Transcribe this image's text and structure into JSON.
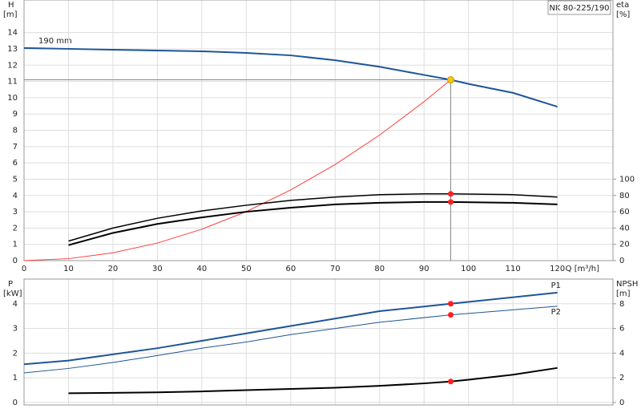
{
  "chart_data": [
    {
      "type": "line",
      "title": "NK 80-225/190",
      "annotation": "190 mm",
      "y_label": "H",
      "y_unit": "[m]",
      "y2_label": "eta",
      "y2_unit": "[%]",
      "x_label": "Q [m³/h]",
      "xlim": [
        0,
        132.5
      ],
      "xticks": [
        0,
        10,
        20,
        30,
        40,
        50,
        60,
        70,
        80,
        90,
        100,
        110,
        120
      ],
      "ylim": [
        0,
        16
      ],
      "yticks": [
        0,
        1,
        2,
        3,
        4,
        5,
        6,
        7,
        8,
        9,
        10,
        11,
        12,
        13,
        14
      ],
      "y2lim": [
        0,
        320
      ],
      "y2ticks": [
        0,
        20,
        40,
        60,
        80,
        100
      ],
      "grid": true,
      "series": [
        {
          "color": "#1f5596",
          "width": 2,
          "x": [
            0,
            10,
            20,
            30,
            40,
            50,
            60,
            70,
            80,
            90,
            96,
            100,
            110,
            120
          ],
          "values": [
            13.05,
            13.0,
            12.95,
            12.9,
            12.85,
            12.75,
            12.6,
            12.3,
            11.9,
            11.4,
            11.1,
            10.85,
            10.3,
            9.45
          ]
        },
        {
          "color": "#ff3b3b",
          "width": 1,
          "x": [
            0,
            10,
            20,
            30,
            40,
            50,
            60,
            70,
            80,
            90,
            96
          ],
          "values": [
            0,
            0.12,
            0.48,
            1.08,
            1.93,
            3.01,
            4.34,
            5.9,
            7.71,
            9.76,
            11.1
          ]
        },
        {
          "color": "#000000",
          "width": 1.5,
          "axis": "y2",
          "x": [
            10,
            20,
            30,
            40,
            50,
            60,
            70,
            80,
            90,
            96,
            110,
            120
          ],
          "values": [
            24,
            40,
            52,
            61,
            68,
            74,
            78,
            81,
            82,
            82,
            81,
            78
          ]
        },
        {
          "color": "#000000",
          "width": 2,
          "axis": "y2",
          "x": [
            10,
            20,
            30,
            40,
            50,
            60,
            70,
            80,
            90,
            96,
            110,
            120
          ],
          "values": [
            19,
            34,
            45,
            53,
            60,
            65,
            69,
            71,
            72,
            72,
            71,
            69
          ]
        }
      ],
      "markers": [
        {
          "x": 96,
          "y": 11.1,
          "color": "#f5c518",
          "duty": true
        },
        {
          "x": 96,
          "y": 82,
          "axis": "y2",
          "color": "#ff2020"
        },
        {
          "x": 96,
          "y": 72,
          "axis": "y2",
          "color": "#ff2020"
        }
      ]
    },
    {
      "type": "line",
      "y_label": "P",
      "y_unit": "[kW]",
      "y2_label": "NPSH",
      "y2_unit": "[m]",
      "xlim": [
        0,
        132.5
      ],
      "ylim": [
        -0.1,
        5
      ],
      "yticks": [
        0,
        1,
        2,
        3,
        4
      ],
      "y2lim": [
        -0.2,
        10
      ],
      "y2ticks": [
        0,
        2,
        4,
        6,
        8
      ],
      "grid": true,
      "series": [
        {
          "name": "P1",
          "color": "#1f5596",
          "width": 2,
          "x": [
            0,
            10,
            20,
            30,
            40,
            50,
            60,
            70,
            80,
            96,
            120
          ],
          "values": [
            1.55,
            1.7,
            1.95,
            2.2,
            2.5,
            2.8,
            3.1,
            3.4,
            3.7,
            4.0,
            4.45
          ]
        },
        {
          "name": "P2",
          "color": "#1f5596",
          "width": 1,
          "x": [
            0,
            10,
            20,
            30,
            40,
            50,
            60,
            70,
            80,
            96,
            120
          ],
          "values": [
            1.2,
            1.38,
            1.62,
            1.9,
            2.2,
            2.45,
            2.75,
            3.0,
            3.25,
            3.55,
            3.9
          ]
        },
        {
          "color": "#000000",
          "width": 2,
          "axis": "y2",
          "x": [
            10,
            20,
            30,
            40,
            50,
            60,
            70,
            80,
            90,
            96,
            100,
            110,
            120
          ],
          "values": [
            0.75,
            0.78,
            0.82,
            0.9,
            1.0,
            1.1,
            1.2,
            1.35,
            1.55,
            1.7,
            1.85,
            2.25,
            2.8
          ]
        }
      ],
      "markers": [
        {
          "x": 96,
          "y": 4.0,
          "color": "#ff2020"
        },
        {
          "x": 96,
          "y": 3.55,
          "color": "#ff2020"
        },
        {
          "x": 96,
          "y": 1.7,
          "axis": "y2",
          "color": "#ff2020"
        }
      ]
    }
  ]
}
